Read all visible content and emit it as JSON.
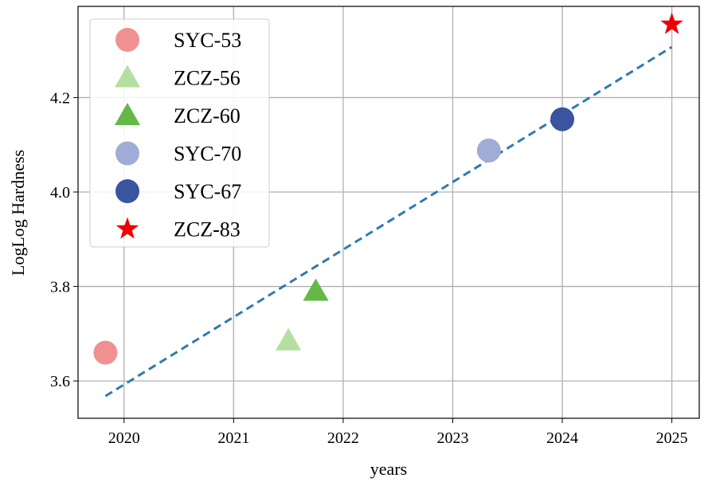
{
  "chart_data": {
    "type": "scatter",
    "title": "",
    "xlabel": "years",
    "ylabel": "LogLog Hardness",
    "xlim": [
      2019.58,
      2025.25
    ],
    "ylim": [
      3.521,
      4.393
    ],
    "xticks": [
      2020,
      2021,
      2022,
      2023,
      2024,
      2025
    ],
    "yticks": [
      3.6,
      3.8,
      4.0,
      4.2
    ],
    "xtick_labels": [
      "2020",
      "2021",
      "2022",
      "2023",
      "2024",
      "2025"
    ],
    "ytick_labels": [
      "3.6",
      "3.8",
      "4.0",
      "4.2"
    ],
    "grid": true,
    "legend_position": "top-left",
    "series": [
      {
        "name": "SYC-53",
        "marker": "circle",
        "color": "#f09191",
        "x": 2019.83,
        "y": 3.66
      },
      {
        "name": "ZCZ-56",
        "marker": "triangle",
        "color": "#b3dfa0",
        "x": 2021.5,
        "y": 3.685
      },
      {
        "name": "ZCZ-60",
        "marker": "triangle",
        "color": "#63b946",
        "x": 2021.75,
        "y": 3.79
      },
      {
        "name": "SYC-70",
        "marker": "circle",
        "color": "#a0acd5",
        "x": 2023.33,
        "y": 4.088
      },
      {
        "name": "SYC-67",
        "marker": "circle",
        "color": "#3a54a0",
        "x": 2024.0,
        "y": 4.154
      },
      {
        "name": "ZCZ-83",
        "marker": "star",
        "color": "#ee0000",
        "x": 2025.0,
        "y": 4.355
      }
    ],
    "trend_line": {
      "style": "dashed",
      "color": "#2e7bb0",
      "x": [
        2019.83,
        2025.0
      ],
      "y": [
        3.568,
        4.307
      ]
    }
  }
}
